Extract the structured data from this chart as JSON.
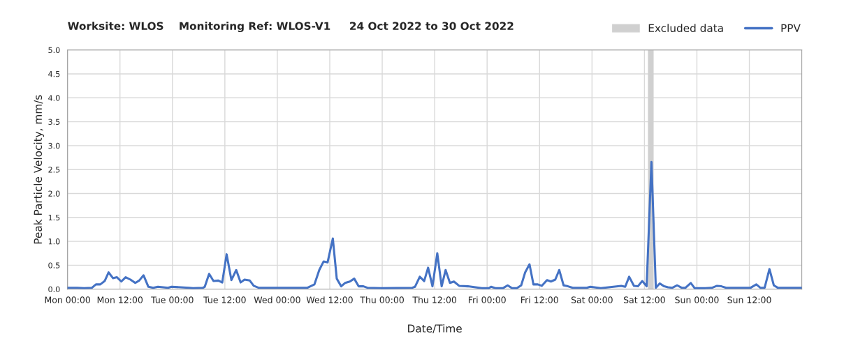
{
  "chart_data": {
    "type": "line",
    "title": "Worksite: WLOS    Monitoring Ref: WLOS-V1     24 Oct 2022 to 30 Oct 2022",
    "xlabel": "Date/Time",
    "ylabel": "Peak Particle Velocity, mm/s",
    "series": [
      {
        "name": "PPV",
        "color": "#4472c4",
        "x": [
          "2022-10-24T00:00",
          "2022-10-24T02:12",
          "2022-10-24T03:48",
          "2022-10-24T05:36",
          "2022-10-24T06:30",
          "2022-10-24T07:30",
          "2022-10-24T08:30",
          "2022-10-24T09:24",
          "2022-10-24T10:24",
          "2022-10-24T11:18",
          "2022-10-24T12:18",
          "2022-10-24T13:18",
          "2022-10-24T14:24",
          "2022-10-24T15:30",
          "2022-10-24T16:24",
          "2022-10-24T17:24",
          "2022-10-24T18:30",
          "2022-10-24T19:36",
          "2022-10-24T20:42",
          "2022-10-24T23:00",
          "2022-10-24T23:48",
          "2022-10-25T03:48",
          "2022-10-25T04:42",
          "2022-10-25T07:00",
          "2022-10-25T07:24",
          "2022-10-25T08:24",
          "2022-10-25T09:24",
          "2022-10-25T10:30",
          "2022-10-25T11:24",
          "2022-10-25T12:24",
          "2022-10-25T13:30",
          "2022-10-25T14:36",
          "2022-10-25T15:36",
          "2022-10-25T16:30",
          "2022-10-25T17:42",
          "2022-10-25T18:36",
          "2022-10-25T19:42",
          "2022-10-26T06:54",
          "2022-10-26T08:30",
          "2022-10-26T09:36",
          "2022-10-26T10:36",
          "2022-10-26T11:30",
          "2022-10-26T12:42",
          "2022-10-26T13:36",
          "2022-10-26T14:36",
          "2022-10-26T15:30",
          "2022-10-26T16:36",
          "2022-10-26T17:36",
          "2022-10-26T18:36",
          "2022-10-26T19:42",
          "2022-10-26T20:36",
          "2022-10-26T23:42",
          "2022-10-27T06:54",
          "2022-10-27T07:30",
          "2022-10-27T08:36",
          "2022-10-27T09:36",
          "2022-10-27T10:30",
          "2022-10-27T11:30",
          "2022-10-27T12:36",
          "2022-10-27T13:36",
          "2022-10-27T14:30",
          "2022-10-27T15:30",
          "2022-10-27T16:24",
          "2022-10-27T17:36",
          "2022-10-27T19:36",
          "2022-10-27T22:48",
          "2022-10-28T00:24",
          "2022-10-28T00:54",
          "2022-10-28T02:00",
          "2022-10-28T03:36",
          "2022-10-28T04:42",
          "2022-10-28T05:42",
          "2022-10-28T06:48",
          "2022-10-28T07:48",
          "2022-10-28T08:42",
          "2022-10-28T09:42",
          "2022-10-28T10:36",
          "2022-10-28T11:36",
          "2022-10-28T12:30",
          "2022-10-28T13:42",
          "2022-10-28T14:36",
          "2022-10-28T15:36",
          "2022-10-28T16:30",
          "2022-10-28T17:30",
          "2022-10-28T18:30",
          "2022-10-28T19:36",
          "2022-10-28T22:48",
          "2022-10-28T23:36",
          "2022-10-29T02:00",
          "2022-10-29T06:42",
          "2022-10-29T07:36",
          "2022-10-29T08:30",
          "2022-10-29T09:36",
          "2022-10-29T10:30",
          "2022-10-29T11:30",
          "2022-10-29T12:30",
          "2022-10-29T13:36",
          "2022-10-29T14:36",
          "2022-10-29T15:30",
          "2022-10-29T16:30",
          "2022-10-29T17:24",
          "2022-10-29T18:24",
          "2022-10-29T19:30",
          "2022-10-29T20:30",
          "2022-10-29T21:24",
          "2022-10-29T22:36",
          "2022-10-29T23:30",
          "2022-10-30T01:54",
          "2022-10-30T03:30",
          "2022-10-30T04:36",
          "2022-10-30T05:36",
          "2022-10-30T06:42",
          "2022-10-30T12:18",
          "2022-10-30T13:36",
          "2022-10-30T14:30",
          "2022-10-30T15:30",
          "2022-10-30T16:36",
          "2022-10-30T17:36",
          "2022-10-30T18:30",
          "2022-10-31T00:00"
        ],
        "values": [
          0.03,
          0.03,
          0.02,
          0.03,
          0.1,
          0.1,
          0.17,
          0.35,
          0.23,
          0.25,
          0.16,
          0.25,
          0.2,
          0.13,
          0.18,
          0.29,
          0.05,
          0.03,
          0.05,
          0.03,
          0.05,
          0.03,
          0.02,
          0.03,
          0.05,
          0.32,
          0.17,
          0.18,
          0.14,
          0.73,
          0.19,
          0.4,
          0.14,
          0.2,
          0.18,
          0.07,
          0.03,
          0.03,
          0.1,
          0.4,
          0.58,
          0.56,
          1.06,
          0.22,
          0.06,
          0.13,
          0.16,
          0.22,
          0.06,
          0.06,
          0.03,
          0.02,
          0.03,
          0.05,
          0.26,
          0.17,
          0.45,
          0.06,
          0.75,
          0.06,
          0.4,
          0.13,
          0.16,
          0.07,
          0.06,
          0.02,
          0.02,
          0.05,
          0.02,
          0.02,
          0.08,
          0.02,
          0.02,
          0.08,
          0.35,
          0.52,
          0.1,
          0.1,
          0.07,
          0.19,
          0.16,
          0.2,
          0.4,
          0.08,
          0.06,
          0.03,
          0.03,
          0.05,
          0.02,
          0.07,
          0.05,
          0.26,
          0.07,
          0.06,
          0.17,
          0.06,
          2.66,
          0.03,
          0.12,
          0.06,
          0.04,
          0.03,
          0.08,
          0.03,
          0.03,
          0.13,
          0.02,
          0.02,
          0.03,
          0.07,
          0.06,
          0.03,
          0.03,
          0.1,
          0.03,
          0.03,
          0.42,
          0.08,
          0.03,
          0.03
        ]
      }
    ],
    "bands": [
      {
        "axis": "x",
        "from": "2022-10-29T12:48",
        "to": "2022-10-29T14:06",
        "label": "Excluded data",
        "color": "#d0d0d0"
      }
    ],
    "xlim": [
      "2022-10-24T00:00",
      "2022-10-31T00:00"
    ],
    "xticks": [
      {
        "value": "2022-10-24T00:00",
        "label": "Mon 00:00"
      },
      {
        "value": "2022-10-24T12:00",
        "label": "Mon 12:00"
      },
      {
        "value": "2022-10-25T00:00",
        "label": "Tue 00:00"
      },
      {
        "value": "2022-10-25T12:00",
        "label": "Tue 12:00"
      },
      {
        "value": "2022-10-26T00:00",
        "label": "Wed 00:00"
      },
      {
        "value": "2022-10-26T12:00",
        "label": "Wed 12:00"
      },
      {
        "value": "2022-10-27T00:00",
        "label": "Thu 00:00"
      },
      {
        "value": "2022-10-27T12:00",
        "label": "Thu 12:00"
      },
      {
        "value": "2022-10-28T00:00",
        "label": "Fri 00:00"
      },
      {
        "value": "2022-10-28T12:00",
        "label": "Fri 12:00"
      },
      {
        "value": "2022-10-29T00:00",
        "label": "Sat 00:00"
      },
      {
        "value": "2022-10-29T12:00",
        "label": "Sat 12:00"
      },
      {
        "value": "2022-10-30T00:00",
        "label": "Sun 00:00"
      },
      {
        "value": "2022-10-30T12:00",
        "label": "Sun 12:00"
      },
      {
        "value": "2022-10-31T00:00",
        "label": null
      }
    ],
    "ylim": [
      0,
      5
    ],
    "yticks": [
      {
        "value": 0,
        "label": "0.0"
      },
      {
        "value": 0.5,
        "label": "0.5"
      },
      {
        "value": 1,
        "label": "1.0"
      },
      {
        "value": 1.5,
        "label": "1.5"
      },
      {
        "value": 2,
        "label": "2.0"
      },
      {
        "value": 2.5,
        "label": "2.5"
      },
      {
        "value": 3,
        "label": "3.0"
      },
      {
        "value": 3.5,
        "label": "3.5"
      },
      {
        "value": 4,
        "label": "4.0"
      },
      {
        "value": 4.5,
        "label": "4.5"
      },
      {
        "value": 5,
        "label": "5.0"
      }
    ],
    "grid": true,
    "legend": "top right",
    "marker": "none",
    "line_style": "solid"
  }
}
